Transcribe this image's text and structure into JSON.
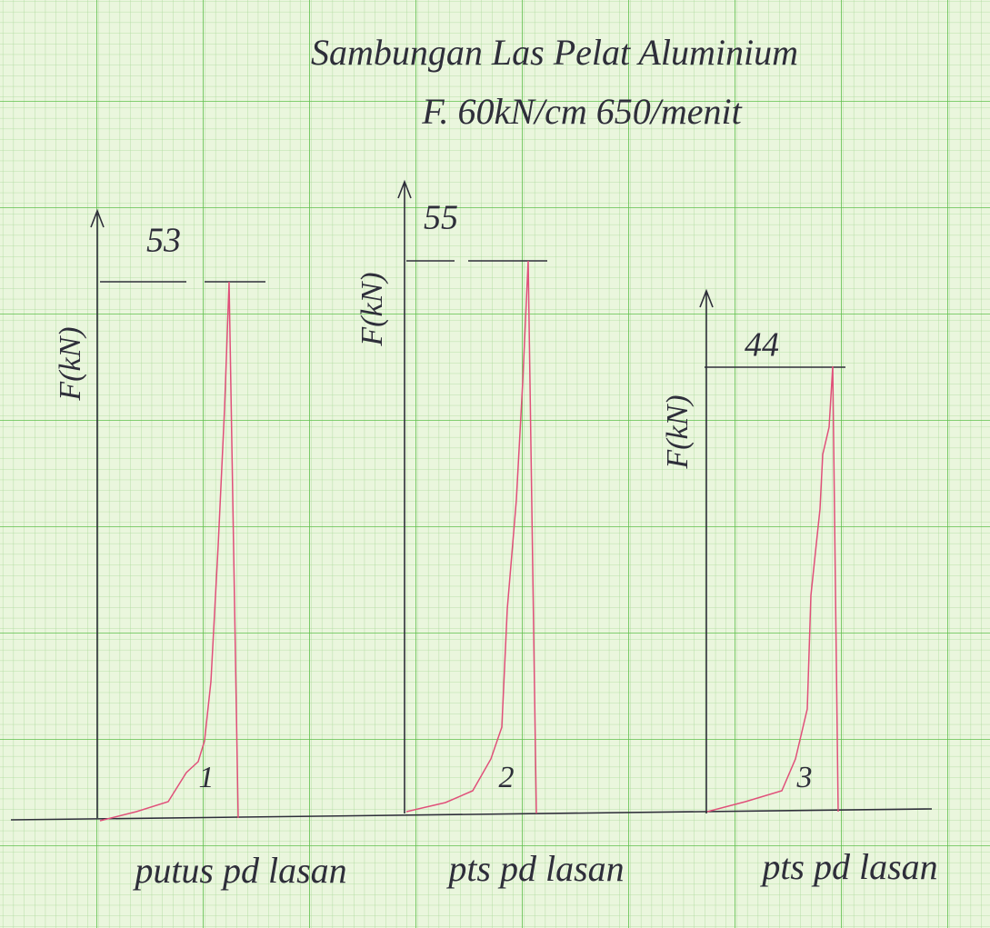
{
  "title": {
    "line1": "Sambungan Las Pelat Aluminium",
    "line2": "F. 60kN/cm   650/menit"
  },
  "plots": [
    {
      "y_label": "F(kN)",
      "peak": 53,
      "number": 1,
      "caption": "putus pd lasan"
    },
    {
      "y_label": "F(kN)",
      "peak": 55,
      "number": 2,
      "caption": "pts pd lasan"
    },
    {
      "y_label": "F(kN)",
      "peak": 44,
      "number": 3,
      "caption": "pts pd lasan"
    }
  ]
}
